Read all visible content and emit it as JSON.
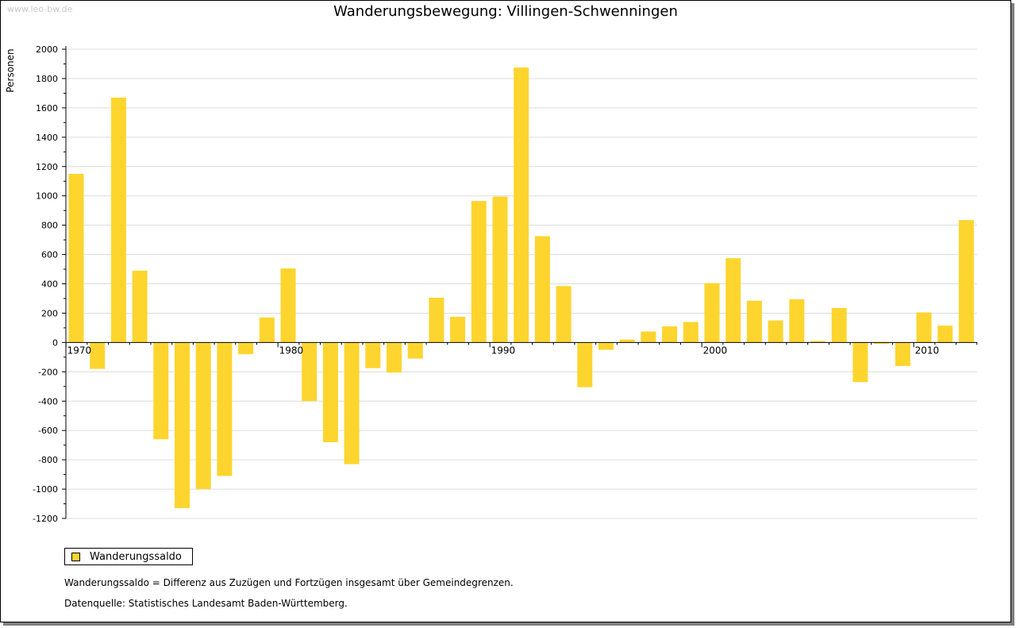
{
  "watermark": "www.leo-bw.de",
  "legend": {
    "label": "Wanderungssaldo"
  },
  "notes": {
    "definition": "Wanderungssaldo = Differenz aus Zuzügen und Fortzügen insgesamt über Gemeindegrenzen.",
    "source": "Datenquelle: Statistisches Landesamt Baden-Württemberg."
  },
  "colors": {
    "bar": "#fdd52e",
    "grid": "#dcdcdc",
    "axis": "#000000"
  },
  "chart_data": {
    "type": "bar",
    "title": "Wanderungsbewegung: Villingen-Schwenningen",
    "xlabel": "",
    "ylabel": "Personen",
    "ylim": [
      -1200,
      2000
    ],
    "yticks": [
      -1200,
      -1000,
      -800,
      -600,
      -400,
      -200,
      0,
      200,
      400,
      600,
      800,
      1000,
      1200,
      1400,
      1600,
      1800,
      2000
    ],
    "xtick_labels": [
      "1970",
      "1980",
      "1990",
      "2000",
      "2010"
    ],
    "grid": true,
    "legend_position": "bottom-left",
    "series": [
      {
        "name": "Wanderungssaldo",
        "x": [
          1970,
          1971,
          1972,
          1973,
          1974,
          1975,
          1976,
          1977,
          1978,
          1979,
          1980,
          1981,
          1982,
          1983,
          1984,
          1985,
          1986,
          1987,
          1988,
          1989,
          1990,
          1991,
          1992,
          1993,
          1994,
          1995,
          1996,
          1997,
          1998,
          1999,
          2000,
          2001,
          2002,
          2003,
          2004,
          2005,
          2006,
          2007,
          2008,
          2009,
          2010,
          2011,
          2012
        ],
        "values": [
          1150,
          -180,
          1670,
          490,
          -660,
          -1130,
          -1000,
          -910,
          -80,
          170,
          505,
          -400,
          -680,
          -830,
          -175,
          -205,
          -110,
          305,
          175,
          965,
          995,
          1875,
          725,
          385,
          -305,
          -50,
          20,
          75,
          110,
          140,
          405,
          575,
          285,
          150,
          295,
          10,
          235,
          -270,
          -10,
          -160,
          205,
          115,
          835
        ]
      }
    ]
  }
}
